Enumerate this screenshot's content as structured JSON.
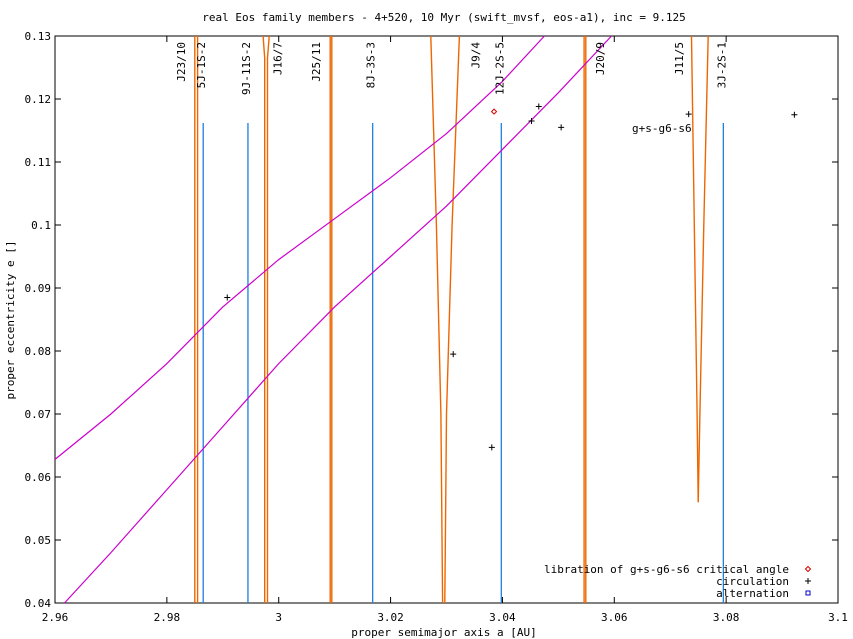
{
  "chart_data": {
    "type": "scatter",
    "title": "real Eos family members - 4+520, 10 Myr (swift_mvsf, eos-a1), inc = 9.125",
    "xlabel": "proper semimajor axis a [AU]",
    "ylabel": "proper eccentricity e []",
    "xlim": [
      2.96,
      3.1
    ],
    "ylim": [
      0.04,
      0.13
    ],
    "xticks": [
      2.96,
      2.98,
      3.0,
      3.02,
      3.04,
      3.06,
      3.08,
      3.1
    ],
    "xtick_labels": [
      "2.96",
      "2.98",
      "3",
      "3.02",
      "3.04",
      "3.06",
      "3.08",
      "3.1"
    ],
    "yticks": [
      0.04,
      0.05,
      0.06,
      0.07,
      0.08,
      0.09,
      0.1,
      0.11,
      0.12,
      0.13
    ],
    "ytick_labels": [
      "0.04",
      "0.05",
      "0.06",
      "0.07",
      "0.08",
      "0.09",
      "0.1",
      "0.11",
      "0.12",
      "0.13"
    ],
    "grid": false,
    "legend_position": "bottom-right",
    "legend": [
      {
        "label": "libration of g+s-g6-s6 critical angle",
        "marker": "diamond",
        "color": "#dd0000"
      },
      {
        "label": "circulation",
        "marker": "plus",
        "color": "#000000"
      },
      {
        "label": "alternation",
        "marker": "square",
        "color": "#0000cc"
      }
    ],
    "series": [
      {
        "name": "libration of g+s-g6-s6 critical angle",
        "color": "#dd0000",
        "marker": "diamond",
        "points": [
          [
            3.0385,
            0.118
          ]
        ]
      },
      {
        "name": "circulation",
        "color": "#000000",
        "marker": "plus",
        "points": [
          [
            2.9908,
            0.0885
          ],
          [
            3.0312,
            0.0795
          ],
          [
            3.0381,
            0.0647
          ],
          [
            3.0452,
            0.1165
          ],
          [
            3.0465,
            0.1188
          ],
          [
            3.0505,
            0.1155
          ],
          [
            3.0733,
            0.1176
          ],
          [
            3.0922,
            0.1175
          ]
        ]
      },
      {
        "name": "alternation",
        "color": "#0000cc",
        "marker": "square",
        "points": []
      }
    ],
    "resonances_secular": [
      {
        "label": "5J-1S-2",
        "a": 2.9865
      },
      {
        "label": "9J-11S-2",
        "a": 2.9945
      },
      {
        "label": "8J-3S-3",
        "a": 3.0168
      },
      {
        "label": "12J-2S-5",
        "a": 3.0398
      },
      {
        "label": "3J-2S-1",
        "a": 3.0795
      }
    ],
    "resonances_mean_motion": [
      {
        "label": "J23/10",
        "left": [
          [
            2.985,
            0.04
          ],
          [
            2.985,
            0.13
          ]
        ],
        "right": [
          [
            2.9855,
            0.04
          ],
          [
            2.9855,
            0.13
          ]
        ]
      },
      {
        "label": "J16/7",
        "left": [
          [
            2.9975,
            0.04
          ],
          [
            2.9975,
            0.1265
          ],
          [
            2.9972,
            0.13
          ]
        ],
        "right": [
          [
            2.998,
            0.04
          ],
          [
            2.998,
            0.1265
          ],
          [
            2.9983,
            0.13
          ]
        ]
      },
      {
        "label": "J25/11",
        "left": [
          [
            3.0092,
            0.04
          ],
          [
            3.0092,
            0.13
          ]
        ],
        "right": [
          [
            3.0095,
            0.04
          ],
          [
            3.0095,
            0.13
          ]
        ]
      },
      {
        "label": "J9/4",
        "left": [
          [
            3.0293,
            0.04
          ],
          [
            3.029,
            0.07
          ],
          [
            3.0282,
            0.1
          ],
          [
            3.0272,
            0.13
          ]
        ],
        "right": [
          [
            3.0297,
            0.04
          ],
          [
            3.03,
            0.07
          ],
          [
            3.031,
            0.1
          ],
          [
            3.0323,
            0.13
          ]
        ]
      },
      {
        "label": "J20/9",
        "left": [
          [
            3.0546,
            0.04
          ],
          [
            3.0546,
            0.13
          ]
        ],
        "right": [
          [
            3.0549,
            0.04
          ],
          [
            3.0549,
            0.13
          ]
        ]
      },
      {
        "label": "J11/5",
        "left": [
          [
            3.075,
            0.056
          ],
          [
            3.0748,
            0.07
          ],
          [
            3.0743,
            0.1
          ],
          [
            3.0738,
            0.13
          ]
        ],
        "right": [
          [
            3.075,
            0.056
          ],
          [
            3.0753,
            0.07
          ],
          [
            3.076,
            0.1
          ],
          [
            3.0768,
            0.13
          ]
        ]
      }
    ],
    "secular_curves": [
      {
        "label": "g+s-g6-s6",
        "points": [
          [
            2.96,
            0.0628
          ],
          [
            2.97,
            0.07
          ],
          [
            2.98,
            0.078
          ],
          [
            2.99,
            0.087
          ],
          [
            3.0,
            0.0945
          ],
          [
            3.01,
            0.101
          ],
          [
            3.02,
            0.1075
          ],
          [
            3.03,
            0.1145
          ],
          [
            3.04,
            0.1228
          ],
          [
            3.0475,
            0.13
          ]
        ]
      },
      {
        "label": "",
        "points": [
          [
            2.9617,
            0.04
          ],
          [
            2.97,
            0.048
          ],
          [
            2.98,
            0.058
          ],
          [
            2.99,
            0.068
          ],
          [
            3.0,
            0.078
          ],
          [
            3.01,
            0.087
          ],
          [
            3.02,
            0.095
          ],
          [
            3.03,
            0.103
          ],
          [
            3.04,
            0.112
          ],
          [
            3.05,
            0.121
          ],
          [
            3.0595,
            0.13
          ]
        ]
      }
    ],
    "annotations": [
      {
        "text": "g+s-g6-s6",
        "a": 3.0685,
        "e": 0.1148
      }
    ]
  }
}
